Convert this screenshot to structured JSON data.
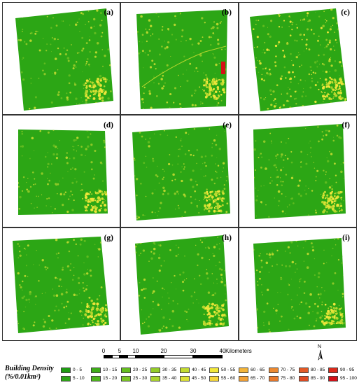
{
  "panels": [
    {
      "label": "(a)"
    },
    {
      "label": "(b)"
    },
    {
      "label": "(c)"
    },
    {
      "label": "(d)"
    },
    {
      "label": "(e)"
    },
    {
      "label": "(f)"
    },
    {
      "label": "(g)"
    },
    {
      "label": "(h)"
    },
    {
      "label": "(i)"
    }
  ],
  "scale": {
    "ticks": [
      "0",
      "5",
      "10",
      "20",
      "30",
      "40"
    ],
    "unit": "Kilometers"
  },
  "north_label": "N",
  "legend": {
    "title_line1": "Building Density",
    "title_line2": "(%/0.01km²)",
    "classes": [
      {
        "label": "0 - 5",
        "color": "#1f9e12"
      },
      {
        "label": "5 - 10",
        "color": "#2ea616"
      },
      {
        "label": "10 - 15",
        "color": "#3fae19"
      },
      {
        "label": "15 - 20",
        "color": "#4fb61c"
      },
      {
        "label": "20 - 25",
        "color": "#66bf20"
      },
      {
        "label": "25 - 30",
        "color": "#7cc625"
      },
      {
        "label": "30 - 35",
        "color": "#95cd29"
      },
      {
        "label": "35 - 40",
        "color": "#acd52e"
      },
      {
        "label": "40 - 45",
        "color": "#c4dc31"
      },
      {
        "label": "45 - 50",
        "color": "#dde236"
      },
      {
        "label": "50 - 55",
        "color": "#f3e83a"
      },
      {
        "label": "55 - 60",
        "color": "#f6d63a"
      },
      {
        "label": "60 - 65",
        "color": "#f4b53a"
      },
      {
        "label": "65 - 70",
        "color": "#f2a136"
      },
      {
        "label": "70 - 75",
        "color": "#ee8a31"
      },
      {
        "label": "75 - 80",
        "color": "#ea7a2c"
      },
      {
        "label": "80 - 85",
        "color": "#e45a26"
      },
      {
        "label": "85 - 90",
        "color": "#e04a22"
      },
      {
        "label": "90 - 95",
        "color": "#dc2a1c"
      },
      {
        "label": "95 - 100",
        "color": "#d51017"
      }
    ]
  }
}
